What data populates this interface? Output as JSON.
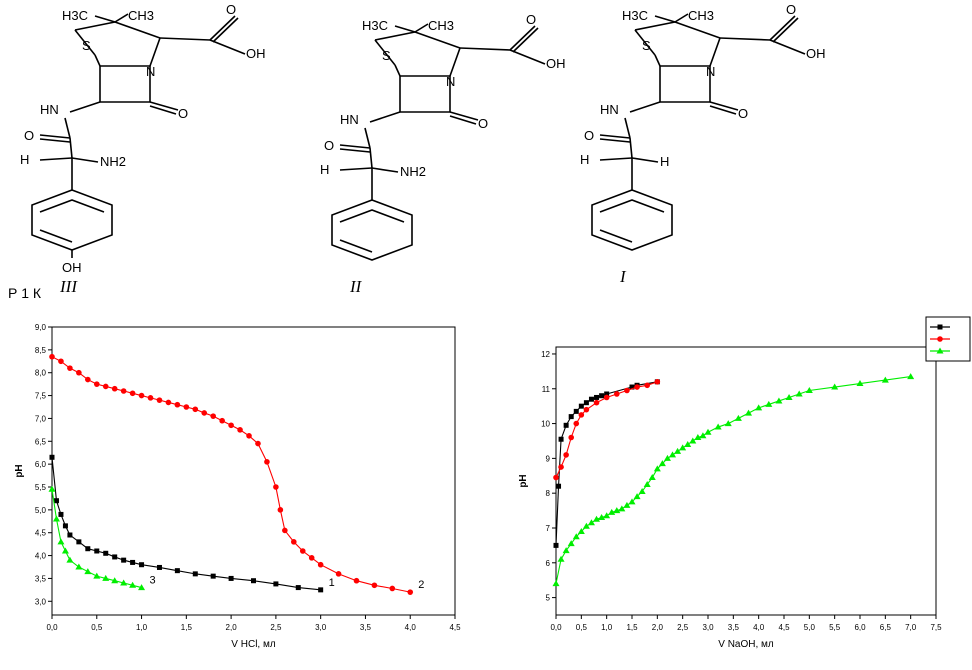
{
  "structures": [
    {
      "numeral": "III",
      "labels": [
        "H3C",
        "CH3",
        "S",
        "N",
        "OH",
        "O",
        "HN",
        "O",
        "H",
        "NH2",
        "OH"
      ]
    },
    {
      "numeral": "II",
      "labels": [
        "H3C",
        "CH3",
        "S",
        "N",
        "OH",
        "O",
        "HN",
        "O",
        "H",
        "NH2"
      ]
    },
    {
      "numeral": "I",
      "labels": [
        "H3C",
        "CH3",
        "S",
        "N",
        "OH",
        "O",
        "HN",
        "O",
        "H",
        "H"
      ]
    }
  ],
  "caption_fragment": "Р    1    К",
  "chart_data": [
    {
      "type": "line",
      "xlabel": "V HCl, мл",
      "ylabel": "pH",
      "xlim": [
        0,
        4.5
      ],
      "ylim": [
        2.7,
        9.0
      ],
      "xticks": [
        "0,0",
        "0,5",
        "1,0",
        "1,5",
        "2,0",
        "2,5",
        "3,0",
        "3,5",
        "4,0",
        "4,5"
      ],
      "yticks": [
        "3,0",
        "3,5",
        "4,0",
        "4,5",
        "5,0",
        "5,5",
        "6,0",
        "6,5",
        "7,0",
        "7,5",
        "8,0",
        "8,5",
        "9,0"
      ],
      "grid": false,
      "series": [
        {
          "name": "1",
          "color": "#000000",
          "marker": "square",
          "x": [
            0,
            0.05,
            0.1,
            0.15,
            0.2,
            0.3,
            0.4,
            0.5,
            0.6,
            0.7,
            0.8,
            0.9,
            1.0,
            1.2,
            1.4,
            1.6,
            1.8,
            2.0,
            2.25,
            2.5,
            2.75,
            3.0
          ],
          "y": [
            6.15,
            5.2,
            4.9,
            4.65,
            4.45,
            4.3,
            4.15,
            4.1,
            4.05,
            3.97,
            3.9,
            3.85,
            3.8,
            3.74,
            3.67,
            3.6,
            3.55,
            3.5,
            3.45,
            3.38,
            3.3,
            3.25
          ]
        },
        {
          "name": "2",
          "color": "#ff0000",
          "marker": "circle",
          "x": [
            0,
            0.1,
            0.2,
            0.3,
            0.4,
            0.5,
            0.6,
            0.7,
            0.8,
            0.9,
            1.0,
            1.1,
            1.2,
            1.3,
            1.4,
            1.5,
            1.6,
            1.7,
            1.8,
            1.9,
            2.0,
            2.1,
            2.2,
            2.3,
            2.4,
            2.5,
            2.55,
            2.6,
            2.7,
            2.8,
            2.9,
            3.0,
            3.2,
            3.4,
            3.6,
            3.8,
            4.0
          ],
          "y": [
            8.35,
            8.25,
            8.1,
            8.0,
            7.85,
            7.75,
            7.7,
            7.65,
            7.6,
            7.55,
            7.5,
            7.45,
            7.4,
            7.35,
            7.3,
            7.25,
            7.2,
            7.12,
            7.05,
            6.95,
            6.85,
            6.75,
            6.62,
            6.45,
            6.05,
            5.5,
            5.0,
            4.55,
            4.3,
            4.1,
            3.95,
            3.8,
            3.6,
            3.45,
            3.35,
            3.28,
            3.2
          ]
        },
        {
          "name": "3",
          "color": "#00ee00",
          "marker": "triangle",
          "x": [
            0,
            0.05,
            0.1,
            0.15,
            0.2,
            0.3,
            0.4,
            0.5,
            0.6,
            0.7,
            0.8,
            0.9,
            1.0
          ],
          "y": [
            5.45,
            4.8,
            4.3,
            4.1,
            3.9,
            3.75,
            3.65,
            3.55,
            3.5,
            3.45,
            3.4,
            3.35,
            3.3
          ]
        }
      ]
    },
    {
      "type": "line",
      "xlabel": "V NaOH, мл",
      "ylabel": "pH",
      "xlim": [
        0,
        7.5
      ],
      "ylim": [
        4.5,
        12.2
      ],
      "xticks": [
        "0,0",
        "0,5",
        "1,0",
        "1,5",
        "2,0",
        "2,5",
        "3,0",
        "3,5",
        "4,0",
        "4,5",
        "5,0",
        "5,5",
        "6,0",
        "6,5",
        "7,0",
        "7,5"
      ],
      "yticks": [
        "5",
        "6",
        "7",
        "8",
        "9",
        "10",
        "11",
        "12"
      ],
      "grid": false,
      "legend": "top-right",
      "series": [
        {
          "color": "#000000",
          "marker": "square",
          "x": [
            0,
            0.05,
            0.1,
            0.2,
            0.3,
            0.4,
            0.5,
            0.6,
            0.7,
            0.8,
            0.9,
            1.0,
            1.5,
            1.6,
            2.0
          ],
          "y": [
            6.5,
            8.2,
            9.55,
            9.95,
            10.2,
            10.35,
            10.5,
            10.6,
            10.7,
            10.75,
            10.8,
            10.85,
            11.05,
            11.1,
            11.2
          ]
        },
        {
          "color": "#ff0000",
          "marker": "circle",
          "x": [
            0,
            0.1,
            0.2,
            0.3,
            0.4,
            0.5,
            0.6,
            0.8,
            1.0,
            1.2,
            1.4,
            1.6,
            1.8,
            2.0
          ],
          "y": [
            8.45,
            8.75,
            9.1,
            9.6,
            10.0,
            10.25,
            10.4,
            10.6,
            10.75,
            10.85,
            10.95,
            11.05,
            11.1,
            11.2
          ]
        },
        {
          "color": "#00ee00",
          "marker": "triangle",
          "x": [
            0,
            0.1,
            0.2,
            0.3,
            0.4,
            0.5,
            0.6,
            0.7,
            0.8,
            0.9,
            1.0,
            1.1,
            1.2,
            1.3,
            1.4,
            1.5,
            1.6,
            1.7,
            1.8,
            1.9,
            2.0,
            2.1,
            2.2,
            2.3,
            2.4,
            2.5,
            2.6,
            2.7,
            2.8,
            2.9,
            3.0,
            3.2,
            3.4,
            3.6,
            3.8,
            4.0,
            4.2,
            4.4,
            4.6,
            4.8,
            5.0,
            5.5,
            6.0,
            6.5,
            7.0
          ],
          "y": [
            5.4,
            6.1,
            6.35,
            6.55,
            6.75,
            6.9,
            7.05,
            7.15,
            7.25,
            7.3,
            7.35,
            7.45,
            7.5,
            7.55,
            7.65,
            7.75,
            7.9,
            8.05,
            8.25,
            8.45,
            8.7,
            8.85,
            9.0,
            9.1,
            9.2,
            9.3,
            9.4,
            9.5,
            9.6,
            9.65,
            9.75,
            9.9,
            10.0,
            10.15,
            10.3,
            10.45,
            10.55,
            10.65,
            10.75,
            10.85,
            10.95,
            11.05,
            11.15,
            11.25,
            11.35
          ]
        }
      ]
    }
  ]
}
